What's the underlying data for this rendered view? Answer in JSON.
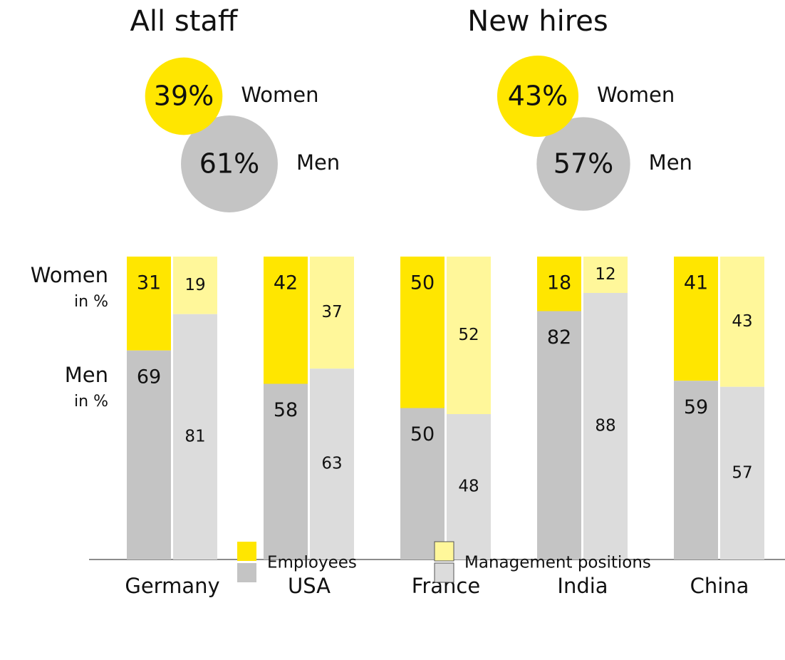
{
  "chart_data": [
    {
      "type": "bubble-pair",
      "title": "All staff",
      "categories": [
        "Women",
        "Men"
      ],
      "values": [
        39,
        61
      ],
      "value_labels": [
        "39%",
        "61%"
      ],
      "colors": [
        "#ffe600",
        "#c4c4c4"
      ]
    },
    {
      "type": "bubble-pair",
      "title": "New hires",
      "categories": [
        "Women",
        "Men"
      ],
      "values": [
        43,
        57
      ],
      "value_labels": [
        "43%",
        "57%"
      ],
      "colors": [
        "#ffe600",
        "#c4c4c4"
      ]
    },
    {
      "type": "stacked-bar",
      "categories": [
        "Germany",
        "USA",
        "France",
        "India",
        "China"
      ],
      "row_labels": [
        {
          "label": "Women",
          "unit": "in %"
        },
        {
          "label": "Men",
          "unit": "in %"
        }
      ],
      "ylim": [
        0,
        100
      ],
      "groups": [
        {
          "name": "Employees",
          "colors": [
            "#ffe600",
            "#c4c4c4"
          ],
          "values": [
            [
              31,
              69
            ],
            [
              42,
              58
            ],
            [
              50,
              50
            ],
            [
              18,
              82
            ],
            [
              41,
              59
            ]
          ]
        },
        {
          "name": "Management positions",
          "colors": [
            "#fff79a",
            "#dcdcdc"
          ],
          "values": [
            [
              19,
              81
            ],
            [
              37,
              63
            ],
            [
              52,
              48
            ],
            [
              12,
              88
            ],
            [
              43,
              57
            ]
          ]
        }
      ]
    }
  ]
}
